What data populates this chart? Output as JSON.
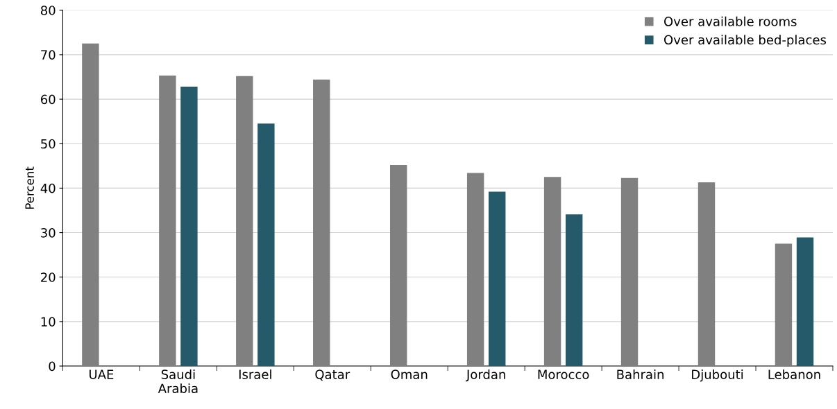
{
  "chart_data": {
    "type": "bar",
    "ylabel": "Percent",
    "categories": [
      "UAE",
      "Saudi\nArabia",
      "Israel",
      "Qatar",
      "Oman",
      "Jordan",
      "Morocco",
      "Bahrain",
      "Djubouti",
      "Lebanon"
    ],
    "series": [
      {
        "name": "Over available rooms",
        "color": "#808080",
        "values": [
          72.5,
          65.3,
          65.2,
          64.4,
          45.2,
          43.4,
          42.5,
          42.3,
          41.3,
          27.5
        ]
      },
      {
        "name": "Over available bed-places",
        "color": "#245a69",
        "values": [
          null,
          62.8,
          54.5,
          null,
          null,
          39.2,
          34.1,
          null,
          null,
          28.9
        ]
      }
    ],
    "ylim": [
      0,
      80
    ],
    "yticks": [
      0,
      10,
      20,
      30,
      40,
      50,
      60,
      70,
      80
    ],
    "grid": "y",
    "legend": "top right"
  }
}
